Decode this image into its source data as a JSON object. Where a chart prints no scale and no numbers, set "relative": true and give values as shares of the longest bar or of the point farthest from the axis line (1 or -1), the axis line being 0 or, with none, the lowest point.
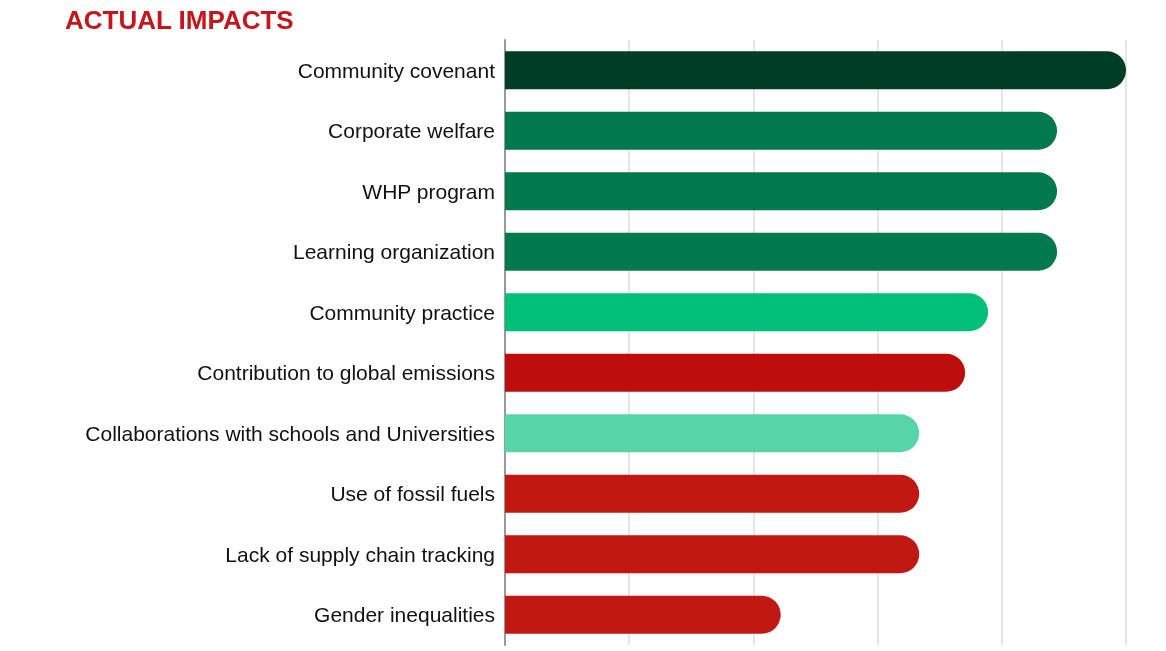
{
  "chart_data": {
    "type": "bar",
    "orientation": "horizontal",
    "relative": true,
    "title": "ACTUAL IMPACTS",
    "categories": [
      "Community covenant",
      "Corporate welfare",
      "WHP program",
      "Learning organization",
      "Community practice",
      "Contribution to global emissions",
      "Collaborations with schools and Universities",
      "Use of fossil fuels",
      "Lack of supply chain tracking",
      "Gender inequalities"
    ],
    "values": [
      1,
      0.889,
      0.889,
      0.889,
      0.778,
      0.741,
      0.667,
      0.667,
      0.667,
      0.444
    ],
    "colors": [
      "#003d25",
      "#007a4d",
      "#007a4d",
      "#007a4d",
      "#00bf78",
      "#bd0d0d",
      "#58d5a7",
      "#c21814",
      "#c21814",
      "#c21814"
    ],
    "grid": "x"
  }
}
